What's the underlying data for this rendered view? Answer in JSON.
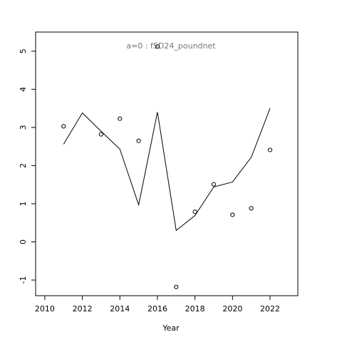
{
  "chart_data": {
    "type": "line",
    "title": "a=0  :  fSD24_poundnet",
    "x_label": "Year",
    "x": [
      2011,
      2012,
      2013,
      2014,
      2015,
      2016,
      2017,
      2018,
      2019,
      2020,
      2021,
      2022
    ],
    "series": [
      {
        "mode": "points",
        "color": "#000000",
        "values": [
          3.03,
          null,
          2.82,
          3.23,
          2.65,
          5.12,
          -1.18,
          0.79,
          1.51,
          0.71,
          0.88,
          2.41
        ]
      },
      {
        "mode": "line",
        "color": "#000000",
        "values": [
          2.56,
          3.38,
          2.9,
          2.43,
          0.97,
          3.4,
          0.3,
          0.69,
          1.44,
          1.57,
          2.22,
          3.5
        ]
      }
    ],
    "xlim": [
      2009.51,
      2023.48
    ],
    "ylim": [
      -1.41,
      5.5
    ],
    "xticks": [
      2010,
      2012,
      2014,
      2016,
      2018,
      2020,
      2022
    ],
    "yticks": [
      -1,
      0,
      1,
      2,
      3,
      4,
      5
    ]
  }
}
